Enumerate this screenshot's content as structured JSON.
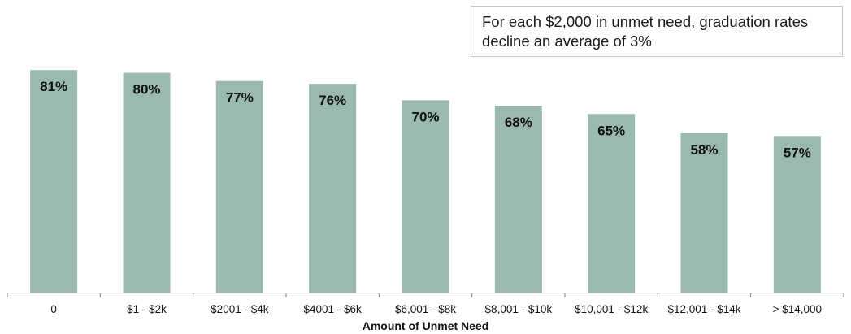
{
  "chart_data": {
    "type": "bar",
    "categories": [
      "0",
      "$1 - $2k",
      "$2001 - $4k",
      "$4001 - $6k",
      "$6,001 - $8k",
      "$8,001 - $10k",
      "$10,001 - $12k",
      "$12,001 - $14k",
      "> $14,000"
    ],
    "values": [
      81,
      80,
      77,
      76,
      70,
      68,
      65,
      58,
      57
    ],
    "data_labels": [
      "81%",
      "80%",
      "77%",
      "76%",
      "70%",
      "68%",
      "65%",
      "58%",
      "57%"
    ],
    "unit": "%",
    "title": "",
    "xlabel": "Amount of Unmet Need",
    "ylabel": "",
    "ylim": [
      0,
      90
    ],
    "grid": false,
    "bar_color": "#9bbaae",
    "annotation": "For each $2,000 in unmet need, graduation rates decline an average of 3%"
  }
}
